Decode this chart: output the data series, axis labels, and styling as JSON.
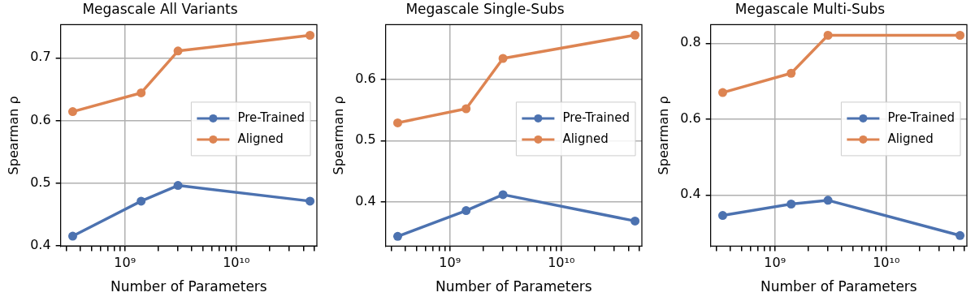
{
  "chart_data": [
    {
      "type": "line",
      "title": "Megascale All Variants",
      "xlabel": "Number of Parameters",
      "ylabel": "Spearman ρ",
      "log": "x",
      "grid": true,
      "legend": "right",
      "marker": "circle",
      "line_style": "solid",
      "x": [
        340000000.0,
        1400000000.0,
        3000000000.0,
        46000000000.0
      ],
      "series": [
        {
          "name": "Pre-Trained",
          "color": "#4c72b0",
          "values": [
            0.415,
            0.471,
            0.496,
            0.471
          ]
        },
        {
          "name": "Aligned",
          "color": "#dd8452",
          "values": [
            0.614,
            0.644,
            0.711,
            0.736
          ]
        }
      ],
      "xlim": [
        265000000.0,
        53000000000.0
      ],
      "xticks": [
        {
          "value": 300000000.0,
          "label": null
        },
        {
          "value": 400000000.0,
          "label": null
        },
        {
          "value": 500000000.0,
          "label": null
        },
        {
          "value": 600000000.0,
          "label": null
        },
        {
          "value": 700000000.0,
          "label": null
        },
        {
          "value": 800000000.0,
          "label": null
        },
        {
          "value": 900000000.0,
          "label": null
        },
        {
          "value": 1000000000.0,
          "label": "10⁹"
        },
        {
          "value": 2000000000.0,
          "label": null
        },
        {
          "value": 3000000000.0,
          "label": null
        },
        {
          "value": 4000000000.0,
          "label": null
        },
        {
          "value": 5000000000.0,
          "label": null
        },
        {
          "value": 6000000000.0,
          "label": null
        },
        {
          "value": 7000000000.0,
          "label": null
        },
        {
          "value": 8000000000.0,
          "label": null
        },
        {
          "value": 9000000000.0,
          "label": null
        },
        {
          "value": 10000000000.0,
          "label": "10¹⁰"
        },
        {
          "value": 20000000000.0,
          "label": null
        },
        {
          "value": 30000000000.0,
          "label": null
        },
        {
          "value": 40000000000.0,
          "label": null
        },
        {
          "value": 50000000000.0,
          "label": null
        }
      ],
      "ylim": [
        0.399,
        0.753
      ],
      "yticks": [
        0.4,
        0.5,
        0.6,
        0.7
      ]
    },
    {
      "type": "line",
      "title": "Megascale Single-Subs",
      "xlabel": "Number of Parameters",
      "ylabel": "Spearman ρ",
      "log": "x",
      "grid": true,
      "legend": "right",
      "marker": "circle",
      "line_style": "solid",
      "x": [
        340000000.0,
        1400000000.0,
        3000000000.0,
        46000000000.0
      ],
      "series": [
        {
          "name": "Pre-Trained",
          "color": "#4c72b0",
          "values": [
            0.344,
            0.386,
            0.412,
            0.369
          ]
        },
        {
          "name": "Aligned",
          "color": "#dd8452",
          "values": [
            0.529,
            0.552,
            0.634,
            0.672
          ]
        }
      ],
      "xlim": [
        265000000.0,
        53000000000.0
      ],
      "xticks": [
        {
          "value": 300000000.0,
          "label": null
        },
        {
          "value": 400000000.0,
          "label": null
        },
        {
          "value": 500000000.0,
          "label": null
        },
        {
          "value": 600000000.0,
          "label": null
        },
        {
          "value": 700000000.0,
          "label": null
        },
        {
          "value": 800000000.0,
          "label": null
        },
        {
          "value": 900000000.0,
          "label": null
        },
        {
          "value": 1000000000.0,
          "label": "10⁹"
        },
        {
          "value": 2000000000.0,
          "label": null
        },
        {
          "value": 3000000000.0,
          "label": null
        },
        {
          "value": 4000000000.0,
          "label": null
        },
        {
          "value": 5000000000.0,
          "label": null
        },
        {
          "value": 6000000000.0,
          "label": null
        },
        {
          "value": 7000000000.0,
          "label": null
        },
        {
          "value": 8000000000.0,
          "label": null
        },
        {
          "value": 9000000000.0,
          "label": null
        },
        {
          "value": 10000000000.0,
          "label": "10¹⁰"
        },
        {
          "value": 20000000000.0,
          "label": null
        },
        {
          "value": 30000000000.0,
          "label": null
        },
        {
          "value": 40000000000.0,
          "label": null
        },
        {
          "value": 50000000000.0,
          "label": null
        }
      ],
      "ylim": [
        0.328,
        0.689
      ],
      "yticks": [
        0.4,
        0.5,
        0.6
      ]
    },
    {
      "type": "line",
      "title": "Megascale Multi-Subs",
      "xlabel": "Number of Parameters",
      "ylabel": "Spearman ρ",
      "log": "x",
      "grid": true,
      "legend": "right",
      "marker": "circle",
      "line_style": "solid",
      "x": [
        340000000.0,
        1400000000.0,
        3000000000.0,
        46000000000.0
      ],
      "series": [
        {
          "name": "Pre-Trained",
          "color": "#4c72b0",
          "values": [
            0.346,
            0.376,
            0.386,
            0.293
          ]
        },
        {
          "name": "Aligned",
          "color": "#dd8452",
          "values": [
            0.67,
            0.721,
            0.821,
            0.821
          ]
        }
      ],
      "xlim": [
        265000000.0,
        53000000000.0
      ],
      "xticks": [
        {
          "value": 300000000.0,
          "label": null
        },
        {
          "value": 400000000.0,
          "label": null
        },
        {
          "value": 500000000.0,
          "label": null
        },
        {
          "value": 600000000.0,
          "label": null
        },
        {
          "value": 700000000.0,
          "label": null
        },
        {
          "value": 800000000.0,
          "label": null
        },
        {
          "value": 900000000.0,
          "label": null
        },
        {
          "value": 1000000000.0,
          "label": "10⁹"
        },
        {
          "value": 2000000000.0,
          "label": null
        },
        {
          "value": 3000000000.0,
          "label": null
        },
        {
          "value": 4000000000.0,
          "label": null
        },
        {
          "value": 5000000000.0,
          "label": null
        },
        {
          "value": 6000000000.0,
          "label": null
        },
        {
          "value": 7000000000.0,
          "label": null
        },
        {
          "value": 8000000000.0,
          "label": null
        },
        {
          "value": 9000000000.0,
          "label": null
        },
        {
          "value": 10000000000.0,
          "label": "10¹⁰"
        },
        {
          "value": 20000000000.0,
          "label": null
        },
        {
          "value": 30000000000.0,
          "label": null
        },
        {
          "value": 40000000000.0,
          "label": null
        },
        {
          "value": 50000000000.0,
          "label": null
        }
      ],
      "ylim": [
        0.265,
        0.849
      ],
      "yticks": [
        0.4,
        0.6,
        0.8
      ]
    }
  ]
}
